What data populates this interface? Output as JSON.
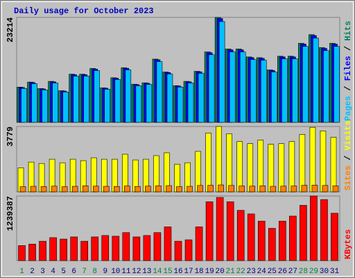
{
  "chart_data": {
    "type": "bar",
    "title": "Daily usage for October 2023",
    "categories": [
      "1",
      "2",
      "3",
      "4",
      "5",
      "6",
      "7",
      "8",
      "9",
      "10",
      "11",
      "12",
      "13",
      "14",
      "15",
      "16",
      "17",
      "18",
      "19",
      "20",
      "21",
      "22",
      "23",
      "24",
      "25",
      "26",
      "27",
      "28",
      "29",
      "30",
      "31"
    ],
    "label_colors": [
      "#008040",
      "#000080",
      "#000080",
      "#000080",
      "#000080",
      "#000080",
      "#008040",
      "#008040",
      "#000080",
      "#000080",
      "#000080",
      "#000080",
      "#000080",
      "#008040",
      "#008040",
      "#000080",
      "#000080",
      "#000080",
      "#000080",
      "#000080",
      "#008040",
      "#008040",
      "#000080",
      "#000080",
      "#000080",
      "#000080",
      "#000080",
      "#008040",
      "#008040",
      "#000080",
      "#000080"
    ],
    "legend_separator": " / ",
    "panels": [
      {
        "ylim": [
          0,
          23214
        ],
        "yticks": [
          23214
        ],
        "series": [
          {
            "name": "Hits",
            "color": "#00805c",
            "values": [
              7790,
              8900,
              7470,
              9060,
              7000,
              10650,
              10650,
              11920,
              7630,
              9860,
              12080,
              8430,
              8740,
              13990,
              11130,
              8110,
              9060,
              11290,
              15580,
              23214,
              16220,
              16220,
              14470,
              14310,
              11600,
              14630,
              14630,
              17490,
              19400,
              16530,
              17490
            ]
          },
          {
            "name": "Files",
            "color": "#0000ff",
            "values": [
              7700,
              8800,
              7390,
              8960,
              6920,
              10530,
              10530,
              11790,
              7550,
              9750,
              11950,
              8340,
              8640,
              13840,
              11010,
              8020,
              8960,
              11170,
              15410,
              22960,
              16040,
              16040,
              14310,
              14150,
              11470,
              14470,
              14470,
              17300,
              19190,
              16350,
              17300
            ]
          },
          {
            "name": "Pages",
            "color": "#00c0ff",
            "values": [
              7480,
              8540,
              7170,
              8700,
              6720,
              10220,
              10220,
              11440,
              7320,
              9470,
              11600,
              8090,
              8390,
              13430,
              10680,
              7790,
              8700,
              10840,
              14960,
              22290,
              15570,
              15570,
              13890,
              13740,
              11140,
              14040,
              14040,
              16790,
              18620,
              15870,
              16790
            ]
          }
        ]
      },
      {
        "ylim": [
          0,
          3779
        ],
        "yticks": [
          3779
        ],
        "series": [
          {
            "name": "Visits",
            "color": "#ffff00",
            "values": [
              1394,
              1722,
              1640,
              1886,
              1681,
              1886,
              1804,
              1968,
              1886,
              1886,
              2173,
              1845,
              1886,
              2091,
              2255,
              1599,
              1681,
              2337,
              3403,
              3779,
              3362,
              2911,
              2788,
              2993,
              2747,
              2788,
              2911,
              3321,
              3731,
              3526,
              3157
            ]
          },
          {
            "name": "Sites",
            "color": "#ff8000",
            "values": [
              300,
              320,
              310,
              330,
              300,
              320,
              350,
              330,
              320,
              310,
              340,
              310,
              330,
              350,
              360,
              300,
              320,
              370,
              380,
              400,
              370,
              340,
              330,
              350,
              320,
              330,
              340,
              380,
              390,
              370,
              350
            ]
          }
        ]
      },
      {
        "ylim": [
          0,
          1239387
        ],
        "yticks": [
          1239387
        ],
        "series": [
          {
            "name": "KBytes",
            "color": "#ff0000",
            "values": [
              289191,
              316733,
              371817,
              440672,
              413130,
              454443,
              371817,
              454443,
              481985,
              468214,
              537069,
              454443,
              481985,
              537069,
              647237,
              371817,
              399359,
              647237,
              1129222,
              1211848,
              1129222,
              963970,
              895115,
              757405,
              619695,
              757405,
              853802,
              1060367,
              1239387,
              1170535,
              908886
            ]
          }
        ]
      }
    ]
  }
}
